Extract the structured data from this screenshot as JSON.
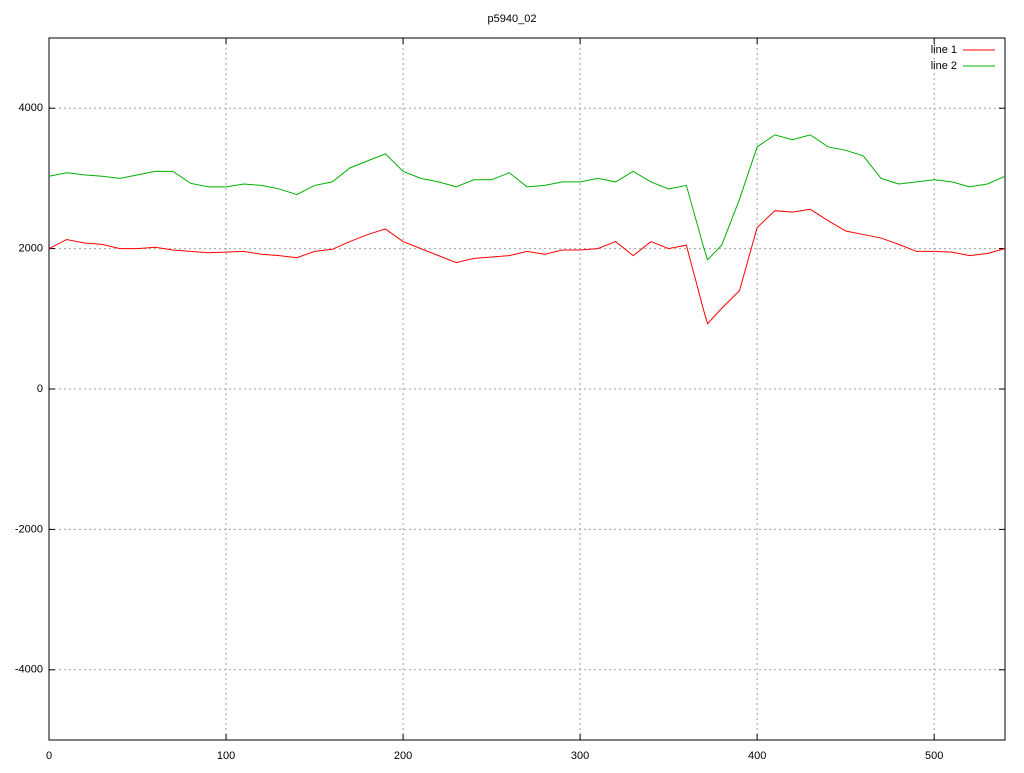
{
  "chart_data": {
    "type": "line",
    "title": "p5940_02",
    "x": [
      0,
      10,
      20,
      30,
      40,
      50,
      60,
      70,
      80,
      90,
      100,
      110,
      120,
      130,
      140,
      150,
      160,
      170,
      180,
      190,
      200,
      210,
      220,
      230,
      240,
      250,
      260,
      270,
      280,
      290,
      300,
      310,
      320,
      330,
      340,
      350,
      360,
      370,
      372,
      380,
      390,
      400,
      410,
      420,
      430,
      440,
      450,
      460,
      470,
      480,
      490,
      500,
      510,
      520,
      530,
      540
    ],
    "series": [
      {
        "name": "line 1",
        "color": "#ff0000",
        "values": [
          2000,
          2130,
          2080,
          2060,
          2000,
          2000,
          2020,
          1980,
          1960,
          1940,
          1950,
          1960,
          1920,
          1900,
          1870,
          1960,
          1990,
          2100,
          2200,
          2280,
          2100,
          2000,
          1900,
          1800,
          1860,
          1880,
          1900,
          1960,
          1920,
          1980,
          1980,
          2000,
          2100,
          1900,
          2100,
          2000,
          2050,
          1100,
          930,
          1150,
          1400,
          2300,
          2540,
          2520,
          2560,
          2400,
          2250,
          2200,
          2150,
          2060,
          1960,
          1960,
          1950,
          1900,
          1930,
          2000
        ]
      },
      {
        "name": "line 2",
        "color": "#00b000",
        "values": [
          3030,
          3080,
          3050,
          3030,
          3000,
          3050,
          3100,
          3100,
          2930,
          2880,
          2880,
          2920,
          2900,
          2850,
          2770,
          2900,
          2950,
          3150,
          3250,
          3350,
          3100,
          3000,
          2950,
          2880,
          2980,
          2980,
          3080,
          2880,
          2900,
          2950,
          2950,
          3000,
          2950,
          3100,
          2950,
          2850,
          2900,
          2000,
          1840,
          2050,
          2700,
          3450,
          3620,
          3550,
          3620,
          3450,
          3400,
          3320,
          3000,
          2920,
          2950,
          2980,
          2950,
          2880,
          2920,
          3030
        ]
      }
    ],
    "xlim": [
      0,
      540
    ],
    "xticks": [
      0,
      100,
      200,
      300,
      400,
      500
    ],
    "ylim": [
      -5000,
      5000
    ],
    "yticks": [
      -4000,
      -2000,
      0,
      2000,
      4000
    ],
    "grid": true,
    "legend": "top-right"
  }
}
